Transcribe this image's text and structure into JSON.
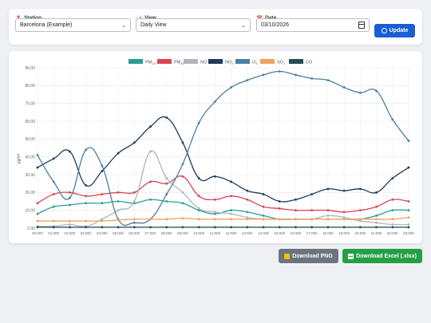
{
  "controls": {
    "station": {
      "label": "Station",
      "icon": "pin-icon",
      "value": "Barcelona (Example)"
    },
    "view": {
      "label": "View",
      "icon": "bar-chart-icon",
      "value": "Daily View"
    },
    "date": {
      "label": "Date",
      "icon": "calendar-icon",
      "value": "03/10/2026"
    },
    "update_label": "Update"
  },
  "actions": {
    "download_png": "Download PNG",
    "download_excel": "Download Excel (.xlsx)"
  },
  "chart_data": {
    "type": "line",
    "title": "",
    "xlabel": "",
    "ylabel": "µg/m³",
    "ylim": [
      0,
      90
    ],
    "yticks": [
      0,
      10,
      20,
      30,
      40,
      50,
      60,
      70,
      80,
      90
    ],
    "ytick_labels": [
      "0.00",
      "10.00",
      "20.00",
      "30.00",
      "40.00",
      "50.00",
      "60.00",
      "70.00",
      "80.00",
      "90.00"
    ],
    "grid": true,
    "legend_position": "top",
    "categories": [
      "00:00h",
      "01:00h",
      "02:00h",
      "03:00h",
      "04:00h",
      "05:00h",
      "06:00h",
      "07:00h",
      "08:00h",
      "09:00h",
      "10:00h",
      "11:00h",
      "12:00h",
      "13:00h",
      "14:00h",
      "15:00h",
      "16:00h",
      "17:00h",
      "18:00h",
      "19:00h",
      "20:00h",
      "21:00h",
      "22:00h",
      "23:00h"
    ],
    "series": [
      {
        "name": "PM2.5",
        "color": "#2a9d8f",
        "values": [
          8,
          12,
          13,
          14,
          14,
          15,
          14,
          16,
          15,
          14,
          10,
          8,
          10,
          9,
          7,
          5,
          5,
          5,
          5,
          5,
          5,
          7,
          10,
          10
        ]
      },
      {
        "name": "PM10",
        "color": "#d94452",
        "values": [
          14,
          19,
          20,
          18,
          19,
          20,
          20,
          26,
          25,
          29,
          18,
          16,
          18,
          16,
          12,
          11,
          10,
          10,
          10,
          9,
          10,
          12,
          16,
          15
        ]
      },
      {
        "name": "NO",
        "color": "#adb5bd",
        "values": [
          1,
          1,
          2,
          1,
          5,
          10,
          15,
          43,
          28,
          20,
          11,
          9,
          8,
          6,
          5,
          5,
          5,
          5,
          7,
          6,
          4,
          3,
          2,
          2
        ]
      },
      {
        "name": "NO2",
        "color": "#1f3a5a",
        "values": [
          34,
          39,
          43,
          24,
          32,
          42,
          48,
          57,
          62,
          48,
          28,
          29,
          26,
          21,
          19,
          15,
          16,
          19,
          22,
          21,
          22,
          20,
          28,
          34
        ]
      },
      {
        "name": "O3",
        "color": "#4a7fa4",
        "values": [
          41,
          26,
          17,
          44,
          35,
          5,
          3,
          5,
          19,
          36,
          59,
          71,
          79,
          83,
          86,
          88,
          86,
          84,
          83,
          79,
          76,
          77,
          61,
          49
        ]
      },
      {
        "name": "SO2",
        "color": "#f0a35e",
        "values": [
          4,
          4,
          4,
          4,
          4,
          4.5,
          5,
          5,
          5,
          5.5,
          5,
          5,
          5,
          5,
          5,
          5,
          5,
          5,
          5,
          5,
          5,
          5,
          5,
          6
        ]
      },
      {
        "name": "CO",
        "color": "#244a52",
        "values": [
          0.5,
          0.5,
          0.5,
          0.5,
          0.5,
          0.5,
          0.5,
          0.5,
          0.5,
          0.5,
          0.5,
          0.5,
          0.5,
          0.5,
          0.5,
          0.5,
          0.5,
          0.5,
          0.5,
          0.5,
          0.5,
          0.5,
          0.5,
          0.5
        ]
      }
    ]
  },
  "legend_labels": {
    "pm25_main": "PM",
    "pm25_sub": "2.5",
    "pm10_main": "PM",
    "pm10_sub": "10",
    "no": "NO",
    "no2_main": "NO",
    "no2_sub": "2",
    "o3_main": "O",
    "o3_sub": "3",
    "so2_main": "SO",
    "so2_sub": "2",
    "co": "CO"
  }
}
